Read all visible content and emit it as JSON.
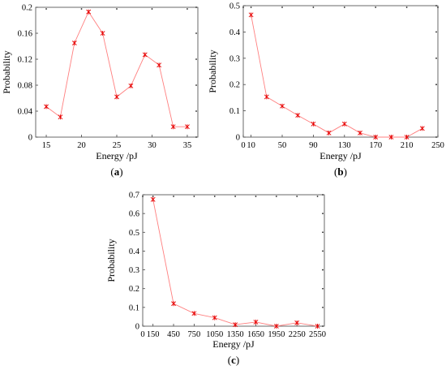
{
  "chart_data": [
    {
      "type": "line",
      "panel_label": "(a)",
      "xlabel": "Energy /pJ",
      "ylabel": "Probability",
      "xlim": [
        13.5,
        36.5
      ],
      "ylim": [
        0,
        0.2
      ],
      "xticks": [
        15,
        20,
        25,
        30,
        35
      ],
      "yticks": [
        0,
        0.04,
        0.08,
        0.12,
        0.16,
        0.2
      ],
      "ytick_labels": [
        "0",
        "0.04",
        "0.08",
        "0.12",
        "0.16",
        "0.2"
      ],
      "series": [
        {
          "color": "#ff7f7f",
          "marker_color": "#e60000",
          "x": [
            15,
            17,
            19,
            21,
            23,
            25,
            27,
            29,
            31,
            33,
            35
          ],
          "y": [
            0.047,
            0.031,
            0.145,
            0.193,
            0.16,
            0.062,
            0.079,
            0.127,
            0.111,
            0.016,
            0.016
          ]
        }
      ]
    },
    {
      "type": "line",
      "panel_label": "(b)",
      "xlabel": "Energy /pJ",
      "ylabel": "Probability",
      "xlim": [
        0,
        250
      ],
      "ylim": [
        0,
        0.5
      ],
      "xticks": [
        0,
        10,
        50,
        90,
        130,
        170,
        210,
        250
      ],
      "xtick_labels": [
        "0",
        "10",
        "50",
        "90",
        "130",
        "170",
        "210",
        "250"
      ],
      "yticks": [
        0,
        0.1,
        0.2,
        0.3,
        0.4,
        0.5
      ],
      "ytick_labels": [
        "0",
        "0.1",
        "0.2",
        "0.3",
        "0.4",
        "0.5"
      ],
      "series": [
        {
          "color": "#ff7f7f",
          "marker_color": "#e60000",
          "x": [
            10,
            30,
            50,
            70,
            90,
            110,
            130,
            150,
            170,
            190,
            210,
            230
          ],
          "y": [
            0.465,
            0.153,
            0.118,
            0.083,
            0.05,
            0.016,
            0.05,
            0.016,
            0.0,
            0.0,
            0.0,
            0.033
          ]
        }
      ]
    },
    {
      "type": "line",
      "panel_label": "(c)",
      "xlabel": "Energy /pJ",
      "ylabel": "Probability",
      "xlim": [
        0,
        2650
      ],
      "ylim": [
        0,
        0.7
      ],
      "xticks": [
        0,
        150,
        450,
        750,
        1050,
        1350,
        1650,
        1950,
        2250,
        2550
      ],
      "xtick_labels": [
        "0",
        "150",
        "450",
        "750",
        "1050",
        "1350",
        "1650",
        "1950",
        "2250",
        "2550"
      ],
      "yticks": [
        0,
        0.1,
        0.2,
        0.3,
        0.4,
        0.5,
        0.6,
        0.7
      ],
      "ytick_labels": [
        "0",
        "0.1",
        "0.2",
        "0.3",
        "0.4",
        "0.5",
        "0.6",
        "0.7"
      ],
      "series": [
        {
          "color": "#ff7f7f",
          "marker_color": "#e60000",
          "x": [
            150,
            450,
            750,
            1050,
            1350,
            1650,
            1950,
            2250,
            2550
          ],
          "y": [
            0.675,
            0.12,
            0.068,
            0.045,
            0.008,
            0.022,
            0.0,
            0.018,
            0.0
          ]
        }
      ]
    }
  ]
}
